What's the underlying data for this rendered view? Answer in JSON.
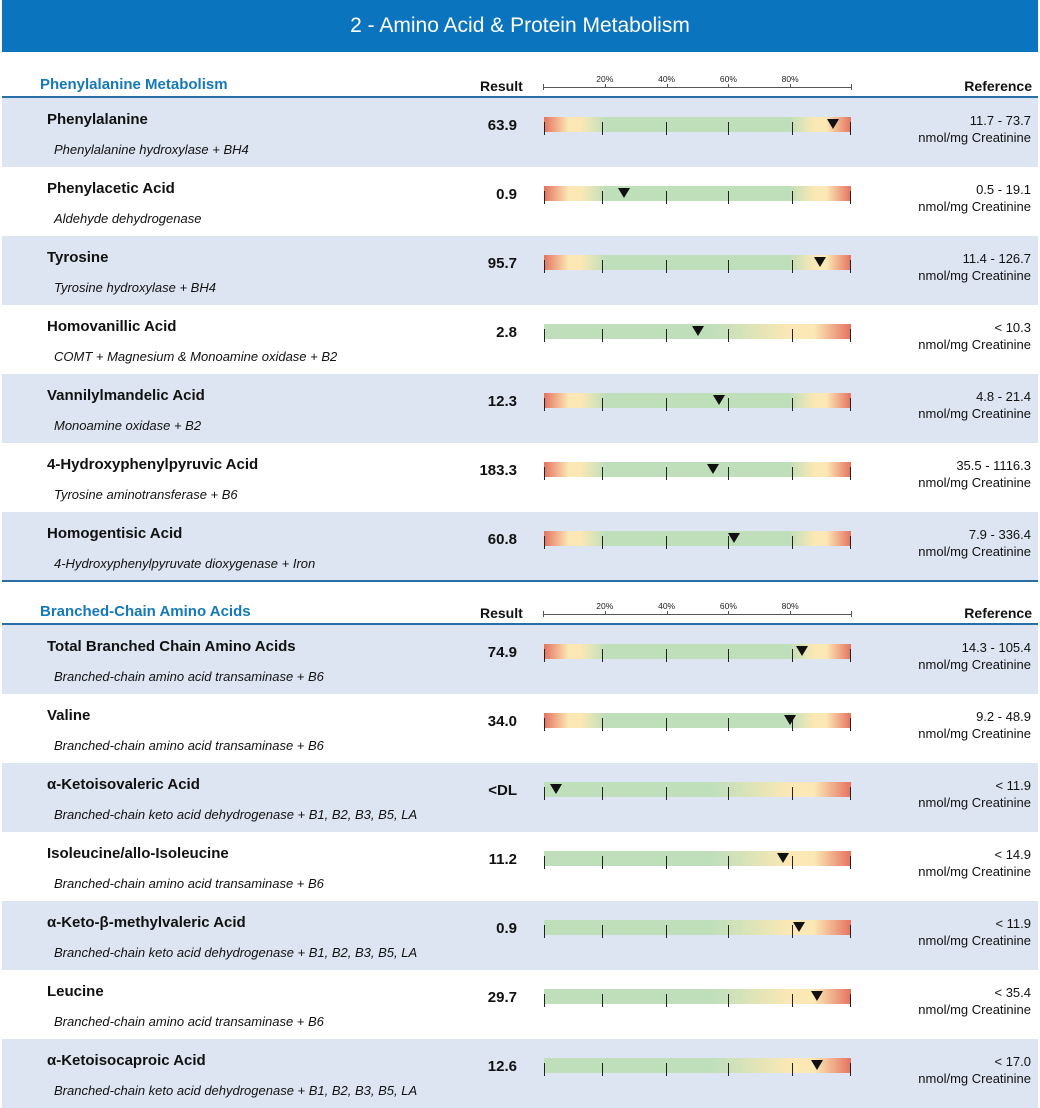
{
  "header": {
    "title": "2 - Amino Acid & Protein Metabolism"
  },
  "scale_labels": [
    "20%",
    "40%",
    "60%",
    "80%"
  ],
  "colors": {
    "banner": "#0b74bf",
    "section_title": "#1579b8",
    "row_shade": "#dde5f2",
    "in_range": "#bfdfbb",
    "borderline": "#fbe8b4",
    "out_of_range": "#e57260"
  },
  "sections": [
    {
      "title": "Phenylalanine Metabolism",
      "result_header": "Result",
      "reference_header": "Reference",
      "rows": [
        {
          "name": "Phenylalanine",
          "enzyme": "Phenylalanine hydroxylase + BH4",
          "result": "63.9",
          "ref_range": "11.7 - 73.7",
          "ref_unit": "nmol/mg Creatinine",
          "range_type": "both",
          "marker_pct": 94
        },
        {
          "name": "Phenylacetic Acid",
          "enzyme": "Aldehyde dehydrogenase",
          "result": "0.9",
          "ref_range": "0.5 - 19.1",
          "ref_unit": "nmol/mg Creatinine",
          "range_type": "both",
          "marker_pct": 26
        },
        {
          "name": "Tyrosine",
          "enzyme": "Tyrosine hydroxylase + BH4",
          "result": "95.7",
          "ref_range": "11.4 - 126.7",
          "ref_unit": "nmol/mg Creatinine",
          "range_type": "both",
          "marker_pct": 90
        },
        {
          "name": "Homovanillic Acid",
          "enzyme": "COMT + Magnesium & Monoamine oxidase + B2",
          "result": "2.8",
          "ref_range": "< 10.3",
          "ref_unit": "nmol/mg Creatinine",
          "range_type": "upper",
          "marker_pct": 50
        },
        {
          "name": "Vannilylmandelic Acid",
          "enzyme": "Monoamine oxidase + B2",
          "result": "12.3",
          "ref_range": "4.8 - 21.4",
          "ref_unit": "nmol/mg Creatinine",
          "range_type": "both",
          "marker_pct": 57
        },
        {
          "name": "4-Hydroxyphenylpyruvic Acid",
          "enzyme": "Tyrosine aminotransferase + B6",
          "result": "183.3",
          "ref_range": "35.5 - 1116.3",
          "ref_unit": "nmol/mg Creatinine",
          "range_type": "both",
          "marker_pct": 55
        },
        {
          "name": "Homogentisic Acid",
          "enzyme": "4-Hydroxyphenylpyruvate dioxygenase + Iron",
          "result": "60.8",
          "ref_range": "7.9 - 336.4",
          "ref_unit": "nmol/mg Creatinine",
          "range_type": "both",
          "marker_pct": 62
        }
      ]
    },
    {
      "title": "Branched-Chain Amino Acids",
      "result_header": "Result",
      "reference_header": "Reference",
      "rows": [
        {
          "name": "Total Branched Chain Amino Acids",
          "enzyme": "Branched-chain amino acid transaminase + B6",
          "result": "74.9",
          "ref_range": "14.3 - 105.4",
          "ref_unit": "nmol/mg Creatinine",
          "range_type": "both",
          "marker_pct": 84
        },
        {
          "name": "Valine",
          "enzyme": "Branched-chain amino acid transaminase + B6",
          "result": "34.0",
          "ref_range": "9.2 - 48.9",
          "ref_unit": "nmol/mg Creatinine",
          "range_type": "both",
          "marker_pct": 80
        },
        {
          "name": "α-Ketoisovaleric Acid",
          "enzyme": "Branched-chain keto acid dehydrogenase + B1, B2, B3, B5, LA",
          "result": "<DL",
          "ref_range": "< 11.9",
          "ref_unit": "nmol/mg Creatinine",
          "range_type": "upper",
          "marker_pct": 4
        },
        {
          "name": "Isoleucine/allo-Isoleucine",
          "enzyme": "Branched-chain amino acid transaminase + B6",
          "result": "11.2",
          "ref_range": "< 14.9",
          "ref_unit": "nmol/mg Creatinine",
          "range_type": "upper",
          "marker_pct": 78
        },
        {
          "name": "α-Keto-β-methylvaleric Acid",
          "enzyme": "Branched-chain keto acid dehydrogenase + B1, B2, B3, B5, LA",
          "result": "0.9",
          "ref_range": "< 11.9",
          "ref_unit": "nmol/mg Creatinine",
          "range_type": "upper",
          "marker_pct": 83
        },
        {
          "name": "Leucine",
          "enzyme": "Branched-chain amino acid transaminase + B6",
          "result": "29.7",
          "ref_range": "< 35.4",
          "ref_unit": "nmol/mg Creatinine",
          "range_type": "upper",
          "marker_pct": 89
        },
        {
          "name": "α-Ketoisocaproic Acid",
          "enzyme": "Branched-chain keto acid dehydrogenase + B1, B2, B3, B5, LA",
          "result": "12.6",
          "ref_range": "< 17.0",
          "ref_unit": "nmol/mg Creatinine",
          "range_type": "upper",
          "marker_pct": 89
        }
      ]
    }
  ]
}
